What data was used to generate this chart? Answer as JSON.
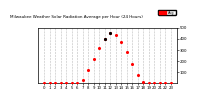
{
  "title": "Milwaukee Weather Solar Radiation Average per Hour (24 Hours)",
  "hours": [
    0,
    1,
    2,
    3,
    4,
    5,
    6,
    7,
    8,
    9,
    10,
    11,
    12,
    13,
    14,
    15,
    16,
    17,
    18,
    19,
    20,
    21,
    22,
    23
  ],
  "values": [
    0,
    0,
    0,
    0,
    0,
    0,
    0,
    30,
    120,
    220,
    320,
    400,
    450,
    430,
    370,
    280,
    170,
    70,
    10,
    0,
    0,
    0,
    0,
    0
  ],
  "dot_color": "red",
  "black_dot_indices": [
    11,
    12
  ],
  "bg_color": "white",
  "grid_color": "#aaaaaa",
  "title_fontsize": 3.0,
  "tick_fontsize": 2.8,
  "ylim": [
    0,
    500
  ],
  "yticks": [
    100,
    200,
    300,
    400,
    500
  ],
  "legend_box_color": "red",
  "legend_label": "Avg"
}
